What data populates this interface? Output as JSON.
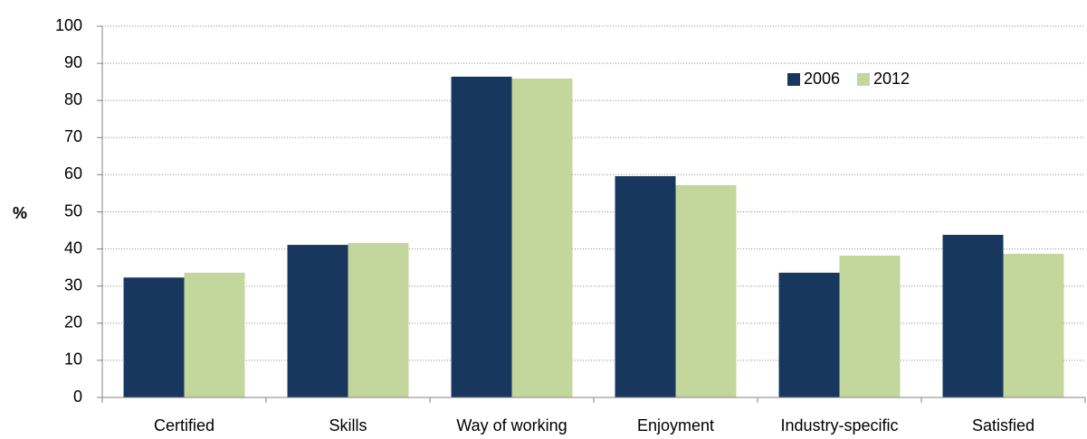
{
  "chart_data": {
    "type": "bar",
    "ylabel": "%",
    "categories": [
      "Certified",
      "Skills",
      "Way of working",
      "Enjoyment",
      "Industry-specific",
      "Satisfied"
    ],
    "series": [
      {
        "name": "2006",
        "color": "#17375e",
        "values": [
          32.3,
          41.1,
          86.4,
          59.6,
          33.6,
          43.8
        ]
      },
      {
        "name": "2012",
        "color": "#c3d69b",
        "values": [
          33.6,
          41.6,
          85.9,
          57.2,
          38.2,
          38.7
        ]
      }
    ],
    "ylim": [
      0,
      100
    ],
    "yticks": [
      0,
      10,
      20,
      30,
      40,
      50,
      60,
      70,
      80,
      90,
      100
    ],
    "grid": true,
    "legend": "upper right"
  }
}
